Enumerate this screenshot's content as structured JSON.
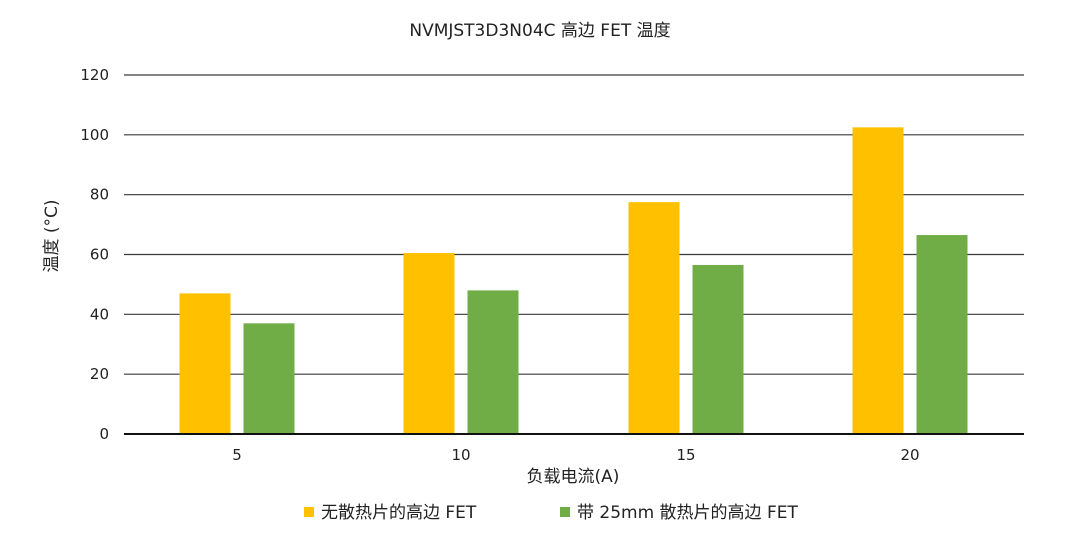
{
  "chart_data": {
    "type": "bar",
    "title": "NVMJST3D3N04C 高边 FET 温度",
    "xlabel": "负载电流(A)",
    "ylabel": "温度 (°C)",
    "categories": [
      "5",
      "10",
      "15",
      "20"
    ],
    "ylim": [
      0,
      120
    ],
    "yticks": [
      "0",
      "20",
      "40",
      "60",
      "80",
      "100",
      "120"
    ],
    "grid": true,
    "legend_position": "bottom",
    "series": [
      {
        "name": "无散热片的高边 FET",
        "color": "#FFC000",
        "values": [
          47,
          60.5,
          77.5,
          102.5
        ]
      },
      {
        "name": "带 25mm 散热片的高边 FET",
        "color": "#70AD47",
        "values": [
          37,
          48,
          56.5,
          66.5
        ]
      }
    ]
  }
}
